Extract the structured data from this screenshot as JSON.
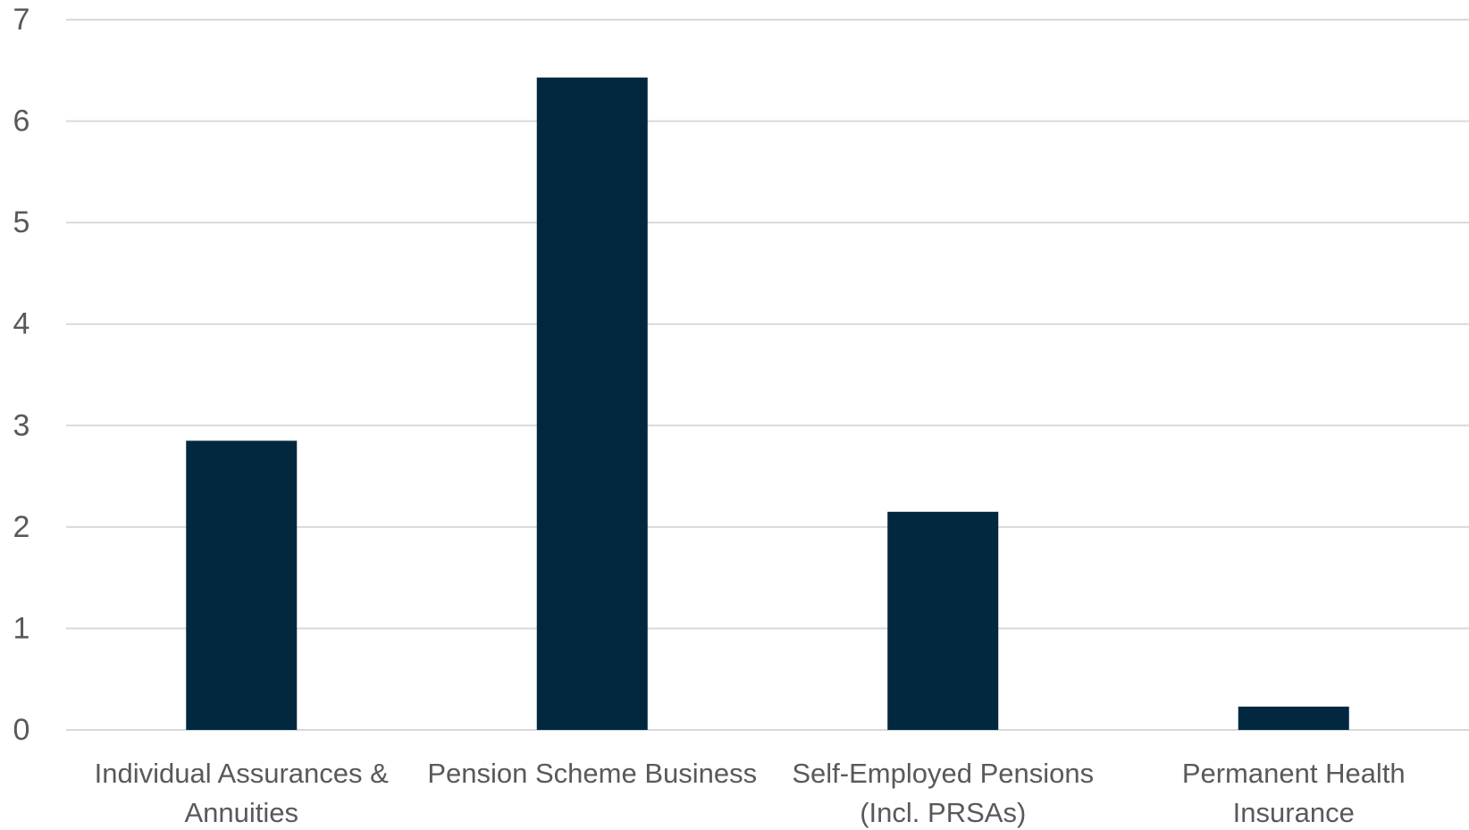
{
  "chart_data": {
    "type": "bar",
    "categories": [
      [
        "Individual Assurances &",
        "Annuities"
      ],
      [
        "Pension Scheme Business"
      ],
      [
        "Self-Employed Pensions",
        "(Incl. PRSAs)"
      ],
      [
        "Permanent Health",
        "Insurance"
      ]
    ],
    "values": [
      2.85,
      6.43,
      2.15,
      0.23
    ],
    "ylim": [
      0,
      7
    ],
    "yticks": [
      0,
      1,
      2,
      3,
      4,
      5,
      6,
      7
    ],
    "grid": true,
    "bar_color": "#022840",
    "title": "",
    "xlabel": "",
    "ylabel": ""
  }
}
